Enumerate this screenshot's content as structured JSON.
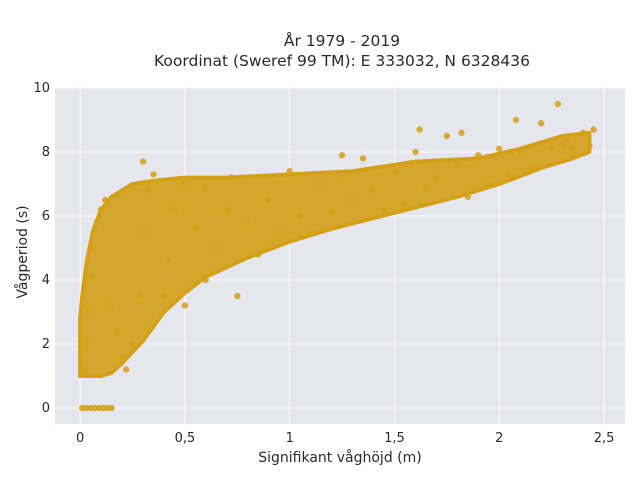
{
  "chart_data": {
    "type": "scatter",
    "title_line1": "År 1979 - 2019",
    "title_line2": "Koordinat (Sweref 99 TM): E 333032, N 6328436",
    "xlabel": "Signifikant våghöjd (m)",
    "ylabel": "Vågperiod (s)",
    "xlim": [
      -0.12,
      2.6
    ],
    "ylim": [
      -0.5,
      10
    ],
    "x_ticks": [
      0,
      0.5,
      1,
      1.5,
      2,
      2.5
    ],
    "x_tick_labels": [
      "0",
      "0,5",
      "1",
      "1,5",
      "2",
      "2,5"
    ],
    "y_ticks": [
      0,
      2,
      4,
      6,
      8,
      10
    ],
    "y_tick_labels": [
      "0",
      "2",
      "4",
      "6",
      "8",
      "10"
    ],
    "grid": true,
    "marker_color": "#D4A017",
    "background_color": "#E6E6EF",
    "points": [
      [
        0.01,
        0
      ],
      [
        0.03,
        0
      ],
      [
        0.05,
        0
      ],
      [
        0.07,
        0
      ],
      [
        0.09,
        0
      ],
      [
        0.11,
        0
      ],
      [
        0.13,
        0
      ],
      [
        0.15,
        0
      ],
      [
        0.02,
        1.2
      ],
      [
        0.03,
        2.0
      ],
      [
        0.04,
        3.0
      ],
      [
        0.05,
        4.1
      ],
      [
        0.06,
        5.0
      ],
      [
        0.08,
        5.8
      ],
      [
        0.1,
        6.2
      ],
      [
        0.12,
        6.5
      ],
      [
        0.15,
        3.2
      ],
      [
        0.18,
        2.4
      ],
      [
        0.2,
        1.6
      ],
      [
        0.22,
        1.2
      ],
      [
        0.25,
        2.0
      ],
      [
        0.28,
        3.5
      ],
      [
        0.3,
        5.5
      ],
      [
        0.33,
        6.8
      ],
      [
        0.3,
        7.7
      ],
      [
        0.35,
        7.3
      ],
      [
        0.4,
        3.5
      ],
      [
        0.42,
        4.6
      ],
      [
        0.45,
        6.2
      ],
      [
        0.5,
        7.0
      ],
      [
        0.5,
        3.2
      ],
      [
        0.55,
        5.6
      ],
      [
        0.6,
        4.0
      ],
      [
        0.6,
        6.9
      ],
      [
        0.65,
        5.0
      ],
      [
        0.7,
        6.2
      ],
      [
        0.72,
        7.2
      ],
      [
        0.75,
        3.5
      ],
      [
        0.8,
        5.8
      ],
      [
        0.85,
        4.8
      ],
      [
        0.9,
        6.5
      ],
      [
        0.95,
        5.5
      ],
      [
        1.0,
        7.4
      ],
      [
        1.05,
        6.0
      ],
      [
        1.1,
        5.5
      ],
      [
        1.15,
        7.0
      ],
      [
        1.2,
        6.1
      ],
      [
        1.25,
        7.2
      ],
      [
        1.3,
        6.5
      ],
      [
        1.35,
        7.8
      ],
      [
        1.4,
        6.8
      ],
      [
        1.45,
        6.2
      ],
      [
        1.5,
        7.4
      ],
      [
        1.55,
        6.4
      ],
      [
        1.6,
        8.0
      ],
      [
        1.65,
        6.9
      ],
      [
        1.7,
        7.2
      ],
      [
        1.75,
        8.5
      ],
      [
        1.8,
        7.6
      ],
      [
        1.85,
        6.6
      ],
      [
        1.9,
        7.9
      ],
      [
        1.95,
        7.0
      ],
      [
        2.0,
        8.1
      ],
      [
        2.05,
        7.3
      ],
      [
        2.1,
        8.0
      ],
      [
        2.15,
        7.5
      ],
      [
        2.2,
        8.9
      ],
      [
        2.25,
        8.1
      ],
      [
        2.28,
        9.5
      ],
      [
        2.32,
        8.4
      ],
      [
        2.36,
        7.9
      ],
      [
        2.4,
        8.6
      ],
      [
        2.43,
        8.2
      ],
      [
        2.45,
        8.7
      ],
      [
        2.08,
        9.0
      ],
      [
        1.82,
        8.6
      ],
      [
        1.62,
        8.7
      ],
      [
        2.3,
        8.2
      ],
      [
        2.35,
        8.1
      ],
      [
        1.25,
        7.9
      ]
    ]
  }
}
